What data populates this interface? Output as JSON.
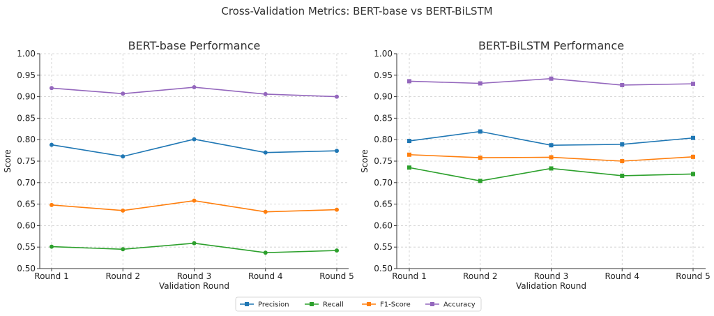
{
  "figure_title": "Cross-Validation Metrics: BERT-base vs BERT-BiLSTM",
  "legend": [
    {
      "name": "Precision",
      "color": "#1f77b4",
      "marker": "square"
    },
    {
      "name": "Recall",
      "color": "#2ca02c",
      "marker": "square"
    },
    {
      "name": "F1-Score",
      "color": "#ff7f0e",
      "marker": "square"
    },
    {
      "name": "Accuracy",
      "color": "#9467bd",
      "marker": "square"
    }
  ],
  "chart_data": [
    {
      "type": "line",
      "title": "BERT-base Performance",
      "xlabel": "Validation Round",
      "ylabel": "Score",
      "categories": [
        "Round 1",
        "Round 2",
        "Round 3",
        "Round 4",
        "Round 5"
      ],
      "ylim": [
        0.5,
        1.0
      ],
      "yticks": [
        "0.50",
        "0.55",
        "0.60",
        "0.65",
        "0.70",
        "0.75",
        "0.80",
        "0.85",
        "0.90",
        "0.95",
        "1.00"
      ],
      "grid": true,
      "marker": "circle",
      "series": [
        {
          "name": "Precision",
          "color": "#1f77b4",
          "values": [
            0.788,
            0.761,
            0.801,
            0.77,
            0.774
          ]
        },
        {
          "name": "Recall",
          "color": "#2ca02c",
          "values": [
            0.551,
            0.545,
            0.559,
            0.537,
            0.542
          ]
        },
        {
          "name": "F1-Score",
          "color": "#ff7f0e",
          "values": [
            0.648,
            0.635,
            0.658,
            0.632,
            0.637
          ]
        },
        {
          "name": "Accuracy",
          "color": "#9467bd",
          "values": [
            0.92,
            0.907,
            0.922,
            0.906,
            0.9
          ]
        }
      ]
    },
    {
      "type": "line",
      "title": "BERT-BiLSTM Performance",
      "xlabel": "Validation Round",
      "ylabel": "Score",
      "categories": [
        "Round 1",
        "Round 2",
        "Round 3",
        "Round 4",
        "Round 5"
      ],
      "ylim": [
        0.5,
        1.0
      ],
      "yticks": [
        "0.50",
        "0.55",
        "0.60",
        "0.65",
        "0.70",
        "0.75",
        "0.80",
        "0.85",
        "0.90",
        "0.95",
        "1.00"
      ],
      "grid": true,
      "marker": "square",
      "series": [
        {
          "name": "Precision",
          "color": "#1f77b4",
          "values": [
            0.797,
            0.819,
            0.787,
            0.789,
            0.804
          ]
        },
        {
          "name": "Recall",
          "color": "#2ca02c",
          "values": [
            0.735,
            0.704,
            0.733,
            0.716,
            0.72
          ]
        },
        {
          "name": "F1-Score",
          "color": "#ff7f0e",
          "values": [
            0.765,
            0.758,
            0.759,
            0.75,
            0.76
          ]
        },
        {
          "name": "Accuracy",
          "color": "#9467bd",
          "values": [
            0.936,
            0.931,
            0.942,
            0.927,
            0.93
          ]
        }
      ]
    }
  ]
}
